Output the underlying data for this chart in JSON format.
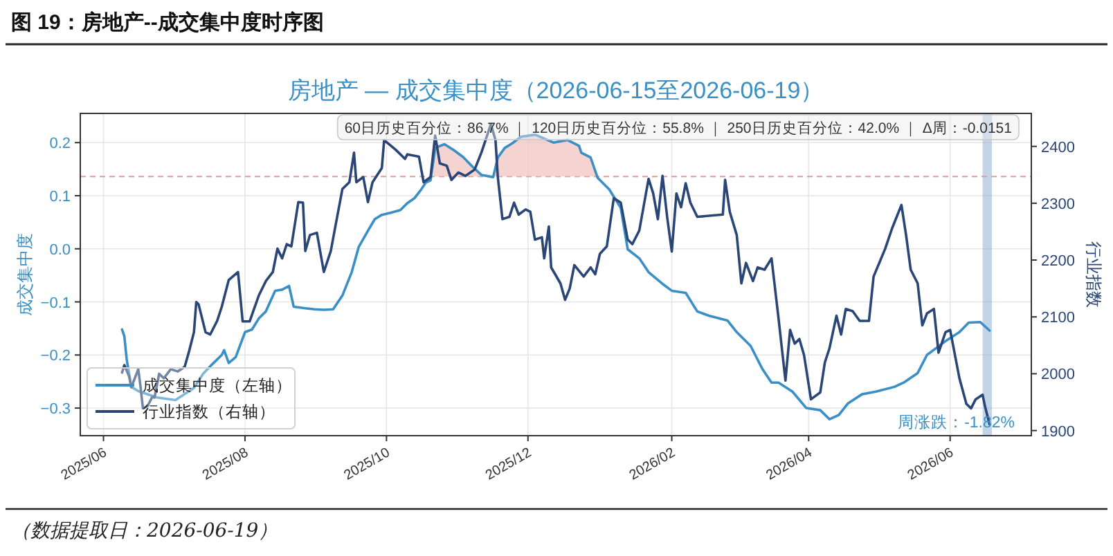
{
  "chart_data": {
    "type": "line",
    "title": "图 19：房地产--成交集中度时序图",
    "subtitle": "房地产 — 成交集中度（2026-06-15至2026-06-19）",
    "ylabel": "成交集中度",
    "y2label": "行业指数",
    "xlim": [
      "2025-05-22",
      "2026-07-06"
    ],
    "xticks": [
      {
        "value": "2025-06-01",
        "label": "2025/06"
      },
      {
        "value": "2025-08-01",
        "label": "2025/08"
      },
      {
        "value": "2025-10-01",
        "label": "2025/10"
      },
      {
        "value": "2025-12-01",
        "label": "2025/12"
      },
      {
        "value": "2026-02-01",
        "label": "2026/02"
      },
      {
        "value": "2026-04-01",
        "label": "2026/04"
      },
      {
        "value": "2026-06-01",
        "label": "2026/06"
      }
    ],
    "ylim": [
      -0.352,
      0.255
    ],
    "yticks": [
      {
        "value": -0.3,
        "label": "−0.3"
      },
      {
        "value": -0.2,
        "label": "−0.2"
      },
      {
        "value": -0.1,
        "label": "−0.1"
      },
      {
        "value": 0,
        "label": "0.0"
      },
      {
        "value": 0.1,
        "label": "0.1"
      },
      {
        "value": 0.2,
        "label": "0.2"
      }
    ],
    "y2lim": [
      1891,
      2458
    ],
    "y2ticks": [
      1900,
      2000,
      2100,
      2200,
      2300,
      2400
    ],
    "grid": true,
    "legend": "bottom left",
    "line_style": "solid",
    "marker": "none",
    "ref_lines": [
      {
        "axis": "y",
        "value": 0.136,
        "color": "#e49a9a",
        "line_style": "dashed"
      }
    ],
    "bands": [
      {
        "axis": "x",
        "from": "2026-06-15",
        "to": "2026-06-19",
        "color": "#8fb0d2"
      }
    ],
    "annotations": [
      "60日历史百分位：86.7% ｜ 120日历史百分位：55.8% ｜ 250日历史百分位：42.0% ｜ Δ周：-0.0151",
      "周涨跌：-1.82%",
      "（数据提取日：2026-06-19）"
    ],
    "series": [
      {
        "name": "成交集中度（左轴）",
        "color": "#3a8fc6",
        "x": [
          "2025-06-09",
          "2025-06-10",
          "2025-06-11",
          "2025-06-13",
          "2025-06-16",
          "2025-06-24",
          "2025-07-02",
          "2025-07-10",
          "2025-07-14",
          "2025-07-18",
          "2025-07-22",
          "2025-07-23",
          "2025-07-25",
          "2025-07-28",
          "2025-08-01",
          "2025-08-04",
          "2025-08-07",
          "2025-08-10",
          "2025-08-14",
          "2025-08-17",
          "2025-08-20",
          "2025-08-22",
          "2025-08-27",
          "2025-08-31",
          "2025-09-04",
          "2025-09-08",
          "2025-09-12",
          "2025-09-16",
          "2025-09-19",
          "2025-09-23",
          "2025-09-26",
          "2025-09-29",
          "2025-10-03",
          "2025-10-07",
          "2025-10-10",
          "2025-10-13",
          "2025-10-16",
          "2025-10-18",
          "2025-10-20",
          "2025-10-22",
          "2025-10-26",
          "2025-10-30",
          "2025-11-03",
          "2025-11-07",
          "2025-11-11",
          "2025-11-16",
          "2025-11-18",
          "2025-11-21",
          "2025-11-24",
          "2025-11-28",
          "2025-12-04",
          "2025-12-12",
          "2025-12-18",
          "2025-12-23",
          "2025-12-24",
          "2025-12-28",
          "2025-12-31",
          "2026-01-05",
          "2026-01-10",
          "2026-01-13",
          "2026-01-18",
          "2026-01-22",
          "2026-01-28",
          "2026-02-01",
          "2026-02-07",
          "2026-02-12",
          "2026-02-17",
          "2026-02-25",
          "2026-03-01",
          "2026-03-07",
          "2026-03-12",
          "2026-03-16",
          "2026-03-19",
          "2026-03-25",
          "2026-03-31",
          "2026-04-06",
          "2026-04-10",
          "2026-04-14",
          "2026-04-18",
          "2026-04-24",
          "2026-04-30",
          "2026-05-08",
          "2026-05-12",
          "2026-05-18",
          "2026-05-22",
          "2026-05-30",
          "2026-06-05",
          "2026-06-09",
          "2026-06-14",
          "2026-06-18"
        ],
        "values": [
          -0.152,
          -0.165,
          -0.208,
          -0.26,
          -0.268,
          -0.28,
          -0.285,
          -0.262,
          -0.235,
          -0.217,
          -0.2,
          -0.191,
          -0.215,
          -0.204,
          -0.157,
          -0.152,
          -0.131,
          -0.118,
          -0.079,
          -0.077,
          -0.07,
          -0.109,
          -0.112,
          -0.114,
          -0.115,
          -0.114,
          -0.088,
          -0.044,
          0.003,
          0.034,
          0.056,
          0.064,
          0.068,
          0.073,
          0.086,
          0.095,
          0.112,
          0.125,
          0.129,
          0.19,
          0.197,
          0.186,
          0.173,
          0.155,
          0.139,
          0.135,
          0.172,
          0.19,
          0.198,
          0.211,
          0.215,
          0.2,
          0.205,
          0.194,
          0.181,
          0.172,
          0.134,
          0.112,
          0.077,
          -0.001,
          -0.018,
          -0.044,
          -0.066,
          -0.079,
          -0.083,
          -0.118,
          -0.126,
          -0.135,
          -0.157,
          -0.183,
          -0.226,
          -0.252,
          -0.252,
          -0.269,
          -0.3,
          -0.304,
          -0.321,
          -0.313,
          -0.291,
          -0.274,
          -0.269,
          -0.26,
          -0.252,
          -0.234,
          -0.2,
          -0.174,
          -0.157,
          -0.139,
          -0.138,
          -0.154
        ]
      },
      {
        "name": "行业指数（右轴）",
        "color": "#2a4676",
        "axis": "y2",
        "x": [
          "2025-06-09",
          "2025-06-10",
          "2025-06-12",
          "2025-06-13",
          "2025-06-16",
          "2025-06-17",
          "2025-06-18",
          "2025-06-20",
          "2025-06-22",
          "2025-06-23",
          "2025-06-25",
          "2025-06-27",
          "2025-06-30",
          "2025-07-03",
          "2025-07-06",
          "2025-07-08",
          "2025-07-10",
          "2025-07-11",
          "2025-07-12",
          "2025-07-15",
          "2025-07-17",
          "2025-07-20",
          "2025-07-22",
          "2025-07-25",
          "2025-07-29",
          "2025-07-31",
          "2025-08-03",
          "2025-08-05",
          "2025-08-07",
          "2025-08-10",
          "2025-08-13",
          "2025-08-15",
          "2025-08-17",
          "2025-08-19",
          "2025-08-21",
          "2025-08-24",
          "2025-08-26",
          "2025-08-27",
          "2025-08-29",
          "2025-09-01",
          "2025-09-04",
          "2025-09-07",
          "2025-09-09",
          "2025-09-12",
          "2025-09-15",
          "2025-09-17",
          "2025-09-18",
          "2025-09-21",
          "2025-09-23",
          "2025-09-25",
          "2025-09-29",
          "2025-09-30",
          "2025-10-05",
          "2025-10-09",
          "2025-10-10",
          "2025-10-15",
          "2025-10-17",
          "2025-10-20",
          "2025-10-22",
          "2025-10-24",
          "2025-10-27",
          "2025-10-29",
          "2025-11-01",
          "2025-11-04",
          "2025-11-08",
          "2025-11-11",
          "2025-11-15",
          "2025-11-17",
          "2025-11-18",
          "2025-11-20",
          "2025-11-23",
          "2025-11-25",
          "2025-11-27",
          "2025-11-30",
          "2025-12-02",
          "2025-12-04",
          "2025-12-07",
          "2025-12-08",
          "2025-12-10",
          "2025-12-11",
          "2025-12-15",
          "2025-12-17",
          "2025-12-19",
          "2025-12-21",
          "2025-12-25",
          "2025-12-28",
          "2025-12-30",
          "2026-01-01",
          "2026-01-04",
          "2026-01-07",
          "2026-01-10",
          "2026-01-13",
          "2026-01-15",
          "2026-01-18",
          "2026-01-22",
          "2026-01-24",
          "2026-01-26",
          "2026-01-28",
          "2026-01-30",
          "2026-02-01",
          "2026-02-03",
          "2026-02-05",
          "2026-02-07",
          "2026-02-09",
          "2026-02-12",
          "2026-02-23",
          "2026-02-24",
          "2026-02-26",
          "2026-03-01",
          "2026-03-03",
          "2026-03-05",
          "2026-03-08",
          "2026-03-10",
          "2026-03-13",
          "2026-03-16",
          "2026-03-19",
          "2026-03-22",
          "2026-03-24",
          "2026-03-26",
          "2026-03-28",
          "2026-03-30",
          "2026-04-02",
          "2026-04-06",
          "2026-04-08",
          "2026-04-10",
          "2026-04-13",
          "2026-04-15",
          "2026-04-17",
          "2026-04-20",
          "2026-04-23",
          "2026-04-27",
          "2026-04-29",
          "2026-05-04",
          "2026-05-07",
          "2026-05-11",
          "2026-05-13",
          "2026-05-15",
          "2026-05-18",
          "2026-05-20",
          "2026-05-22",
          "2026-05-25",
          "2026-05-27",
          "2026-05-30",
          "2026-06-01",
          "2026-06-05",
          "2026-06-08",
          "2026-06-10",
          "2026-06-12",
          "2026-06-15",
          "2026-06-16",
          "2026-06-18"
        ],
        "values": [
          2002,
          2015,
          1996,
          1976,
          2008,
          1976,
          1939,
          1943,
          1959,
          1958,
          2000,
          1992,
          2008,
          2004,
          2012,
          2041,
          2073,
          2126,
          2122,
          2073,
          2069,
          2093,
          2118,
          2165,
          2179,
          2092,
          2092,
          2115,
          2138,
          2163,
          2179,
          2220,
          2203,
          2228,
          2224,
          2302,
          2301,
          2216,
          2244,
          2248,
          2179,
          2216,
          2260,
          2325,
          2337,
          2389,
          2337,
          2346,
          2302,
          2337,
          2362,
          2411,
          2394,
          2378,
          2386,
          2382,
          2337,
          2346,
          2419,
          2370,
          2366,
          2341,
          2354,
          2348,
          2359,
          2390,
          2439,
          2411,
          2346,
          2272,
          2276,
          2301,
          2280,
          2289,
          2285,
          2236,
          2240,
          2203,
          2259,
          2187,
          2159,
          2130,
          2150,
          2191,
          2171,
          2187,
          2175,
          2211,
          2224,
          2309,
          2301,
          2236,
          2228,
          2252,
          2343,
          2317,
          2272,
          2348,
          2276,
          2215,
          2317,
          2293,
          2335,
          2301,
          2276,
          2280,
          2341,
          2285,
          2244,
          2159,
          2195,
          2163,
          2187,
          2183,
          2203,
          2098,
          1988,
          2077,
          2053,
          2061,
          2033,
          1955,
          1967,
          2020,
          2045,
          2102,
          2069,
          2114,
          2110,
          2093,
          2093,
          2171,
          2220,
          2256,
          2297,
          2244,
          2183,
          2159,
          2085,
          2106,
          2114,
          2037,
          2073,
          2077,
          1992,
          1947,
          1939,
          1955,
          1963,
          1943,
          1911
        ]
      },
      {
        "type": "area",
        "color": "#f2c4c1",
        "x": [
          "2025-10-21",
          "2025-10-22",
          "2025-10-26",
          "2025-10-30",
          "2025-11-03",
          "2025-11-07",
          "2025-11-11",
          "2025-11-14",
          "2025-11-16",
          "2025-11-18",
          "2025-11-21",
          "2025-11-24",
          "2025-11-28",
          "2025-12-04",
          "2025-12-12",
          "2025-12-18",
          "2025-12-23",
          "2025-12-24",
          "2025-12-28",
          "2025-12-31"
        ],
        "values": [
          0.136,
          0.19,
          0.197,
          0.186,
          0.173,
          0.155,
          0.139,
          0.136,
          0.136,
          0.172,
          0.19,
          0.198,
          0.211,
          0.215,
          0.2,
          0.205,
          0.194,
          0.181,
          0.172,
          0.136
        ]
      }
    ]
  }
}
